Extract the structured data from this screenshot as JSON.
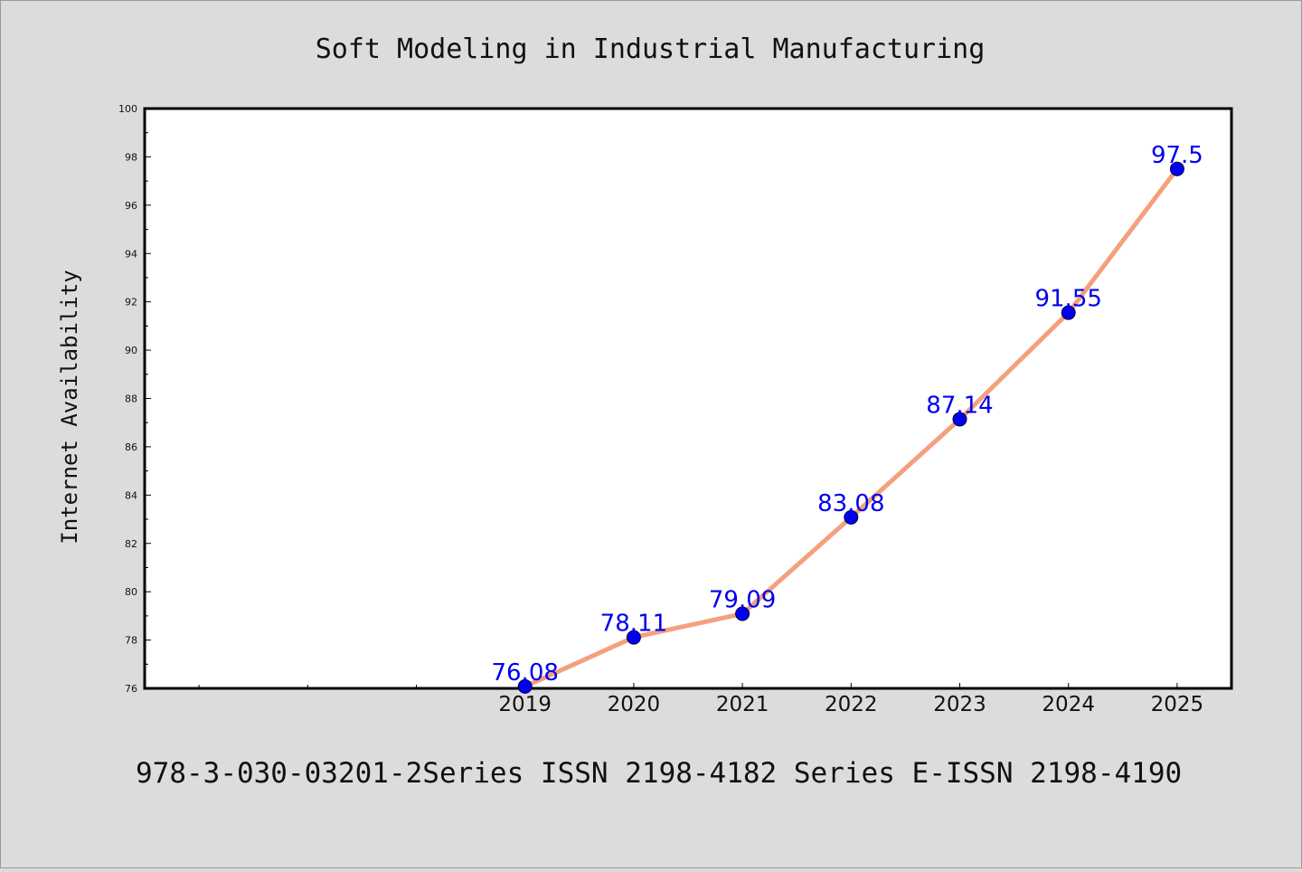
{
  "caption": "978-3-030-03201-2Series ISSN 2198-4182 Series E-ISSN 2198-4190",
  "colors": {
    "background": "#dcdcdc",
    "plot_area": "#ffffff",
    "line": "#f4a07e",
    "marker": "#0000ee",
    "data_label": "#0000ee"
  },
  "chart_data": {
    "type": "line",
    "title": "Soft Modeling in Industrial Manufacturing",
    "xlabel": "",
    "ylabel": "Internet Availability",
    "categories": [
      "2019",
      "2020",
      "2021",
      "2022",
      "2023",
      "2024",
      "2025"
    ],
    "series": [
      {
        "values": [
          76.08,
          78.11,
          79.09,
          83.08,
          87.14,
          91.55,
          97.5
        ],
        "labels": [
          "76.08",
          "78.11",
          "79.09",
          "83.08",
          "87.14",
          "91.55",
          "97.5"
        ]
      }
    ],
    "ylim": [
      76,
      100
    ],
    "yticks": [
      "76",
      "78",
      "80",
      "82",
      "84",
      "86",
      "88",
      "90",
      "92",
      "94",
      "96",
      "98",
      "100"
    ],
    "xlim": [
      2015.5,
      2025.5
    ],
    "grid": false,
    "legend": "none"
  }
}
